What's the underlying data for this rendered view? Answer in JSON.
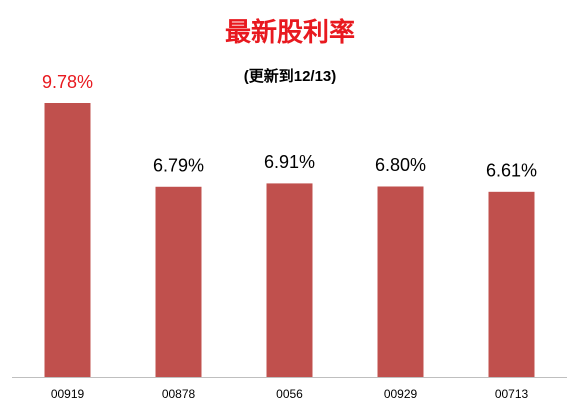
{
  "chart_data": {
    "type": "bar",
    "title": "最新股利率",
    "subtitle": "(更新到12/13)",
    "title_color": "#e8191f",
    "categories": [
      "00919",
      "00878",
      "0056",
      "00929",
      "00713"
    ],
    "values": [
      9.78,
      6.79,
      6.91,
      6.8,
      6.61
    ],
    "value_labels": [
      "9.78%",
      "6.79%",
      "6.91%",
      "6.80%",
      "6.61%"
    ],
    "value_label_colors": [
      "#e8191f",
      "#000000",
      "#000000",
      "#000000",
      "#000000"
    ],
    "color": "#c0504d"
  }
}
